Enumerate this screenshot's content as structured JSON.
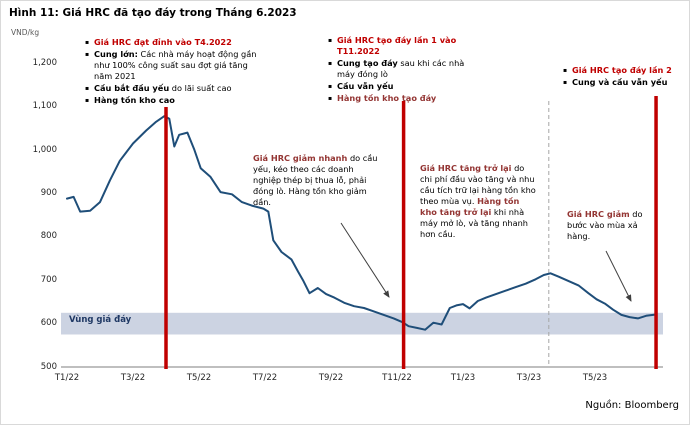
{
  "figure": {
    "title": "Hình 11: Giá HRC đã tạo đáy trong Tháng 6.2023",
    "source": "Nguồn: Bloomberg",
    "y_unit": "VND/kg"
  },
  "colors": {
    "line": "#1f4e79",
    "event_line": "#c00000",
    "red_text": "#c00000",
    "maroon_text": "#943634",
    "band": "#ccd3e2",
    "dashed_line": "#a6a6a6",
    "axis": "#7f7f7f",
    "arrow": "#3f3f3f"
  },
  "icons": {
    "bullet": "▪"
  },
  "chart_data": {
    "type": "line",
    "title": "Giá HRC đã tạo đáy trong Tháng 6.2023",
    "xlabel": "",
    "ylabel": "VND/kg",
    "ylim": [
      500,
      1200
    ],
    "grid": false,
    "legend": "none",
    "y_ticks": [
      "500",
      "600",
      "700",
      "800",
      "900",
      "1,000",
      "1,100",
      "1,200"
    ],
    "y_tick_values": [
      500,
      600,
      700,
      800,
      900,
      1000,
      1100,
      1200
    ],
    "x_ticks": [
      "T1/22",
      "T3/22",
      "T5/22",
      "T7/22",
      "T9/22",
      "T11/22",
      "T1/23",
      "T3/23",
      "T5/23"
    ],
    "x_tick_months": [
      0,
      2,
      4,
      6,
      8,
      10,
      12,
      14,
      16
    ],
    "x_unit": "months since T1/2022",
    "band": {
      "label": "Vùng giá đáy",
      "from": 575,
      "to": 625
    },
    "event_lines_months": [
      3.0,
      10.2,
      17.85
    ],
    "event_lines_labels": [
      "Đỉnh T4.2022",
      "Đáy lần 1 T11.2022",
      "Đáy lần 2 T6.2023"
    ],
    "dashed_line_month": 14.6,
    "series": [
      {
        "name": "Giá HRC (VND/kg)",
        "points": [
          [
            0,
            888
          ],
          [
            0.2,
            892
          ],
          [
            0.4,
            858
          ],
          [
            0.7,
            860
          ],
          [
            1,
            880
          ],
          [
            1.3,
            930
          ],
          [
            1.6,
            975
          ],
          [
            2,
            1015
          ],
          [
            2.4,
            1045
          ],
          [
            2.7,
            1065
          ],
          [
            2.95,
            1078
          ],
          [
            3.1,
            1072
          ],
          [
            3.25,
            1008
          ],
          [
            3.4,
            1035
          ],
          [
            3.65,
            1040
          ],
          [
            3.85,
            1002
          ],
          [
            4.05,
            958
          ],
          [
            4.35,
            938
          ],
          [
            4.65,
            903
          ],
          [
            5,
            898
          ],
          [
            5.3,
            880
          ],
          [
            5.6,
            872
          ],
          [
            5.95,
            865
          ],
          [
            6.1,
            858
          ],
          [
            6.25,
            792
          ],
          [
            6.5,
            765
          ],
          [
            6.8,
            748
          ],
          [
            7,
            720
          ],
          [
            7.15,
            700
          ],
          [
            7.35,
            670
          ],
          [
            7.6,
            682
          ],
          [
            7.85,
            668
          ],
          [
            8.1,
            660
          ],
          [
            8.4,
            648
          ],
          [
            8.7,
            640
          ],
          [
            9,
            636
          ],
          [
            9.3,
            628
          ],
          [
            9.6,
            620
          ],
          [
            9.9,
            612
          ],
          [
            10.15,
            604
          ],
          [
            10.35,
            594
          ],
          [
            10.6,
            590
          ],
          [
            10.85,
            586
          ],
          [
            11.1,
            602
          ],
          [
            11.35,
            598
          ],
          [
            11.6,
            636
          ],
          [
            11.8,
            642
          ],
          [
            12,
            645
          ],
          [
            12.2,
            635
          ],
          [
            12.45,
            652
          ],
          [
            12.7,
            660
          ],
          [
            13,
            668
          ],
          [
            13.3,
            676
          ],
          [
            13.6,
            684
          ],
          [
            13.9,
            692
          ],
          [
            14.2,
            702
          ],
          [
            14.45,
            712
          ],
          [
            14.65,
            716
          ],
          [
            14.9,
            708
          ],
          [
            15.2,
            698
          ],
          [
            15.5,
            688
          ],
          [
            15.8,
            670
          ],
          [
            16.05,
            656
          ],
          [
            16.3,
            646
          ],
          [
            16.55,
            632
          ],
          [
            16.8,
            620
          ],
          [
            17.05,
            615
          ],
          [
            17.3,
            612
          ],
          [
            17.55,
            618
          ],
          [
            17.85,
            621
          ]
        ]
      }
    ]
  },
  "annotations": {
    "peak_2022": {
      "l1": "Giá HRC đạt đỉnh vào T4.2022",
      "l2a": "Cung lớn:",
      "l2b": " Các nhà máy hoạt động gần như 100% công suất sau đợt giá tăng năm 2021",
      "l3a": "Cầu bắt đầu yếu",
      "l3b": " do lãi suất cao",
      "l4": "Hàng tồn kho cao"
    },
    "bottom1": {
      "l1": "Giá HRC tạo đáy lần 1 vào T11.2022",
      "l2a": "Cung tạo đáy",
      "l2b": " sau khi các nhà máy đóng lò",
      "l3": "Cầu vẫn yếu",
      "l4": "Hàng tồn kho tạo đáy"
    },
    "bottom2": {
      "l1": "Giá HRC tạo đáy lần 2",
      "l2": "Cung và cầu vẫn yếu"
    },
    "decline": {
      "a": "Giá HRC giảm nhanh",
      "b": " do cầu yếu, kéo theo các doanh nghiệp thép bị thua lỗ, phải đóng lò. Hàng tồn kho giảm dần."
    },
    "rebound": {
      "a": "Giá HRC tăng trở lại",
      "b": " do chi phí đầu vào tăng và nhu cầu tích trữ lại hàng tồn kho theo mùa vụ. ",
      "c": "Hàng tồn kho tăng trở lại",
      "d": " khi nhà máy mở lò, và tăng nhanh hơn cầu."
    },
    "selloff": {
      "a": "Giá HRC giảm",
      "b": " do bước vào mùa xả hàng."
    }
  }
}
